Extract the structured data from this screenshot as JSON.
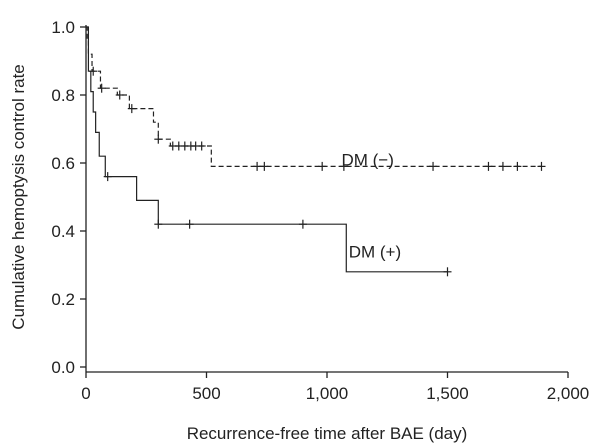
{
  "chart_data": {
    "type": "line",
    "xlabel": "Recurrence-free time after BAE (day)",
    "ylabel": "Cumulative hemoptysis control rate",
    "xlim": [
      0,
      2000
    ],
    "ylim": [
      0,
      1.0
    ],
    "x_ticks": [
      0,
      500,
      1000,
      1500,
      2000
    ],
    "x_tick_labels": [
      "0",
      "500",
      "1,000",
      "1,500",
      "2,000"
    ],
    "y_ticks": [
      0,
      0.2,
      0.4,
      0.6,
      0.8,
      1.0
    ],
    "y_tick_labels": [
      "0.0",
      "0.2",
      "0.4",
      "0.6",
      "0.8",
      "1.0"
    ],
    "grid": false,
    "series": [
      {
        "name": "DM (−)",
        "line_style": "dashed",
        "color": "#222222",
        "steps": [
          [
            0,
            1.0
          ],
          [
            5,
            0.96
          ],
          [
            10,
            0.92
          ],
          [
            25,
            0.87
          ],
          [
            60,
            0.82
          ],
          [
            130,
            0.8
          ],
          [
            180,
            0.76
          ],
          [
            280,
            0.72
          ],
          [
            300,
            0.67
          ],
          [
            350,
            0.65
          ],
          [
            520,
            0.59
          ],
          [
            1890,
            0.59
          ]
        ],
        "censored": [
          [
            30,
            0.87
          ],
          [
            65,
            0.82
          ],
          [
            140,
            0.8
          ],
          [
            190,
            0.76
          ],
          [
            300,
            0.67
          ],
          [
            360,
            0.65
          ],
          [
            385,
            0.65
          ],
          [
            410,
            0.65
          ],
          [
            435,
            0.65
          ],
          [
            455,
            0.65
          ],
          [
            480,
            0.65
          ],
          [
            710,
            0.59
          ],
          [
            740,
            0.59
          ],
          [
            980,
            0.59
          ],
          [
            1070,
            0.59
          ],
          [
            1440,
            0.59
          ],
          [
            1670,
            0.59
          ],
          [
            1730,
            0.59
          ],
          [
            1790,
            0.59
          ],
          [
            1890,
            0.59
          ]
        ]
      },
      {
        "name": "DM (+)",
        "line_style": "solid",
        "color": "#222222",
        "steps": [
          [
            0,
            1.0
          ],
          [
            10,
            0.87
          ],
          [
            20,
            0.81
          ],
          [
            30,
            0.75
          ],
          [
            40,
            0.69
          ],
          [
            55,
            0.62
          ],
          [
            80,
            0.56
          ],
          [
            210,
            0.49
          ],
          [
            300,
            0.42
          ],
          [
            1080,
            0.28
          ],
          [
            1500,
            0.28
          ]
        ],
        "censored": [
          [
            90,
            0.56
          ],
          [
            300,
            0.42
          ],
          [
            430,
            0.42
          ],
          [
            900,
            0.42
          ],
          [
            1500,
            0.28
          ]
        ]
      }
    ]
  }
}
